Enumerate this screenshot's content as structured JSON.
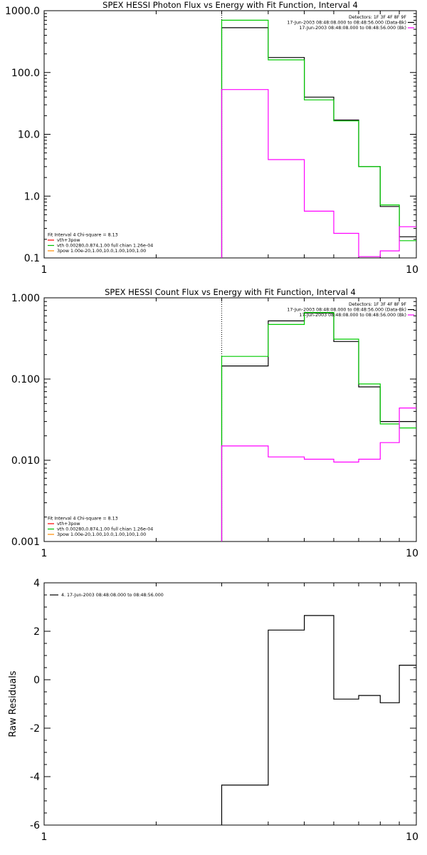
{
  "chart_data": [
    {
      "type": "line",
      "title": "SPEX HESSI Photon Flux vs Energy with Fit Function, Interval 4",
      "xlabel": "",
      "ylabel": "",
      "xscale": "log",
      "yscale": "log",
      "xlim": [
        1,
        10
      ],
      "ylim": [
        0.1,
        1000
      ],
      "xticks": [
        {
          "v": 1,
          "label": "1"
        },
        {
          "v": 10,
          "label": "10"
        }
      ],
      "yticks": [
        {
          "v": 0.1,
          "label": "0.1"
        },
        {
          "v": 1,
          "label": "1.0"
        },
        {
          "v": 10,
          "label": "10.0"
        },
        {
          "v": 100,
          "label": "100.0"
        },
        {
          "v": 1000,
          "label": "1000.0"
        }
      ],
      "vline": {
        "x": 3.0,
        "style": "dotted"
      },
      "legend_topright": [
        {
          "text": "Detectors: 1F 3F 4F 8F 9F",
          "color": ""
        },
        {
          "text": "17-Jun-2003 08:48:08.000 to 08:48:56.000 (Data-Bk)",
          "color": "#000000"
        },
        {
          "text": "17-Jun-2003 08:48:08.000 to 08:48:56.000 (Bk)",
          "color": "#ff00ff"
        }
      ],
      "legend_bottomleft": [
        {
          "text": "Fit Interval 4   Chi-square = 8.13",
          "color": ""
        },
        {
          "text": "vth+3pow",
          "color": "#ff0000"
        },
        {
          "text": "vth 0.00280,0.874,1.00   full chian 1.26e-04",
          "color": "#00c000"
        },
        {
          "text": "3pow 1.00e-20,1.00,10.0,1.00,100,1.00",
          "color": "#ff8c00"
        }
      ],
      "series": [
        {
          "color": "#000000",
          "edges": [
            3.0,
            4.0,
            5.0,
            6.0,
            7.0,
            8.0,
            9.0,
            10.0
          ],
          "values": [
            530,
            175,
            40,
            17,
            3.0,
            0.68,
            0.22
          ]
        },
        {
          "color": "#00cc00",
          "edges": [
            3.0,
            4.0,
            5.0,
            6.0,
            7.0,
            8.0,
            9.0,
            10.0
          ],
          "values": [
            700,
            160,
            36,
            16.5,
            3.0,
            0.72,
            0.19
          ]
        },
        {
          "color": "#ff00ff",
          "edges": [
            3.0,
            4.0,
            5.0,
            6.0,
            7.0,
            8.0,
            9.0,
            10.0
          ],
          "values": [
            53,
            3.9,
            0.57,
            0.25,
            0.105,
            0.13,
            0.32
          ]
        }
      ]
    },
    {
      "type": "line",
      "title": "SPEX HESSI Count Flux vs Energy with Fit Function, Interval 4",
      "xlabel": "",
      "ylabel": "",
      "xscale": "log",
      "yscale": "log",
      "xlim": [
        1,
        10
      ],
      "ylim": [
        0.001,
        1
      ],
      "xticks": [
        {
          "v": 1,
          "label": "1"
        },
        {
          "v": 10,
          "label": "10"
        }
      ],
      "yticks": [
        {
          "v": 0.001,
          "label": "0.001"
        },
        {
          "v": 0.01,
          "label": "0.010"
        },
        {
          "v": 0.1,
          "label": "0.100"
        },
        {
          "v": 1,
          "label": "1.000"
        }
      ],
      "vline": {
        "x": 3.0,
        "style": "dotted"
      },
      "legend_topright": [
        {
          "text": "Detectors: 1F 3F 4F 8F 9F",
          "color": ""
        },
        {
          "text": "17-Jun-2003 08:48:08.000 to 08:48:56.000 (Data-Bk)",
          "color": "#000000"
        },
        {
          "text": "17-Jun-2003 08:48:08.000 to 08:48:56.000 (Bk)",
          "color": "#ff00ff"
        }
      ],
      "legend_bottomleft": [
        {
          "text": "Fit Interval 4   Chi-square = 8.13",
          "color": ""
        },
        {
          "text": "vth+3pow",
          "color": "#ff0000"
        },
        {
          "text": "vth 0.00280,0.874,1.00   full chian 1.26e-04",
          "color": "#00c000"
        },
        {
          "text": "3pow 1.00e-20,1.00,10.0,1.00,100,1.00",
          "color": "#ff8c00"
        }
      ],
      "series": [
        {
          "color": "#000000",
          "edges": [
            3.0,
            4.0,
            5.0,
            6.0,
            7.0,
            8.0,
            9.0,
            10.0
          ],
          "values": [
            0.145,
            0.52,
            0.65,
            0.29,
            0.08,
            0.03,
            0.03
          ]
        },
        {
          "color": "#00cc00",
          "edges": [
            3.0,
            4.0,
            5.0,
            6.0,
            7.0,
            8.0,
            9.0,
            10.0
          ],
          "values": [
            0.19,
            0.47,
            0.66,
            0.31,
            0.087,
            0.028,
            0.025
          ]
        },
        {
          "color": "#ff00ff",
          "edges": [
            3.0,
            4.0,
            5.0,
            6.0,
            7.0,
            8.0,
            9.0,
            10.0
          ],
          "values": [
            0.015,
            0.011,
            0.0103,
            0.0095,
            0.0103,
            0.0165,
            0.044
          ]
        }
      ]
    },
    {
      "type": "line",
      "title": "",
      "xlabel": "",
      "ylabel": "Raw Residuals",
      "xscale": "log",
      "yscale": "linear",
      "xlim": [
        1,
        10
      ],
      "ylim": [
        -6,
        4
      ],
      "xticks": [
        {
          "v": 1,
          "label": "1"
        },
        {
          "v": 10,
          "label": "10"
        }
      ],
      "yticks": [
        {
          "v": -6,
          "label": "-6"
        },
        {
          "v": -4,
          "label": "-4"
        },
        {
          "v": -2,
          "label": "-2"
        },
        {
          "v": 0,
          "label": "0"
        },
        {
          "v": 2,
          "label": "2"
        },
        {
          "v": 4,
          "label": "4"
        }
      ],
      "legend_topleft": [
        {
          "text": "4. 17-Jun-2003 08:48:08.000 to 08:48:56.000",
          "color": "#000000"
        }
      ],
      "series": [
        {
          "color": "#000000",
          "edges": [
            3.0,
            4.0,
            5.0,
            6.0,
            7.0,
            8.0,
            9.0,
            10.0
          ],
          "values": [
            -4.35,
            2.05,
            2.65,
            -0.8,
            -0.65,
            -0.95,
            0.6
          ],
          "drop_to_bottom": true
        }
      ]
    }
  ]
}
